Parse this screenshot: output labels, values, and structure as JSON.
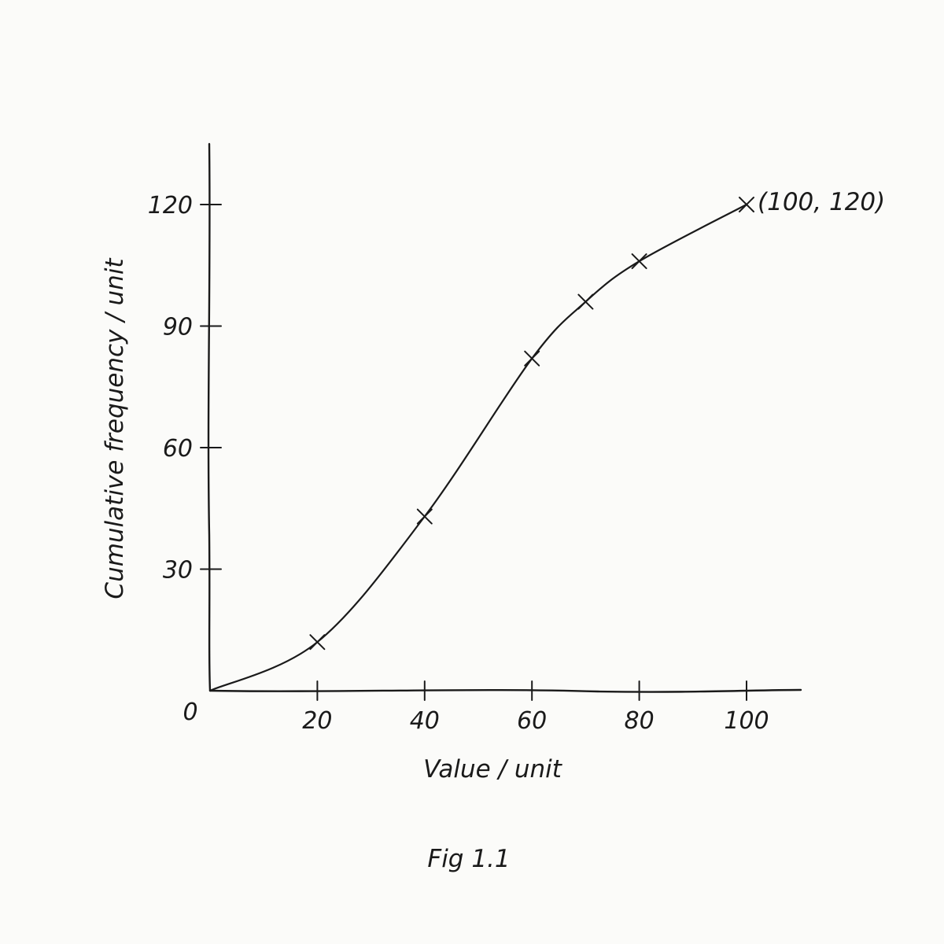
{
  "chart_data": {
    "type": "line",
    "title": "",
    "caption": "Fig 1.1",
    "xlabel": "Value / unit",
    "ylabel": "Cumulative frequency / unit",
    "xlim": [
      0,
      110
    ],
    "ylim": [
      0,
      135
    ],
    "x_ticks": [
      20,
      40,
      60,
      80,
      100
    ],
    "y_ticks": [
      30,
      60,
      90,
      120
    ],
    "origin_label": "0",
    "grid": false,
    "legend": "none",
    "series": [
      {
        "curve_x": [
          0,
          20,
          40,
          60,
          70,
          80,
          100
        ],
        "curve_y": [
          0,
          12,
          43,
          82,
          96,
          106,
          120
        ],
        "points_x": [
          20,
          40,
          60,
          70,
          80,
          100
        ],
        "points_y": [
          12,
          43,
          82,
          96,
          106,
          120
        ],
        "marker": "x",
        "color": "#1a1a1a"
      }
    ],
    "annotations": [
      {
        "x": 100,
        "y": 120,
        "text": "(100, 120)"
      }
    ]
  }
}
